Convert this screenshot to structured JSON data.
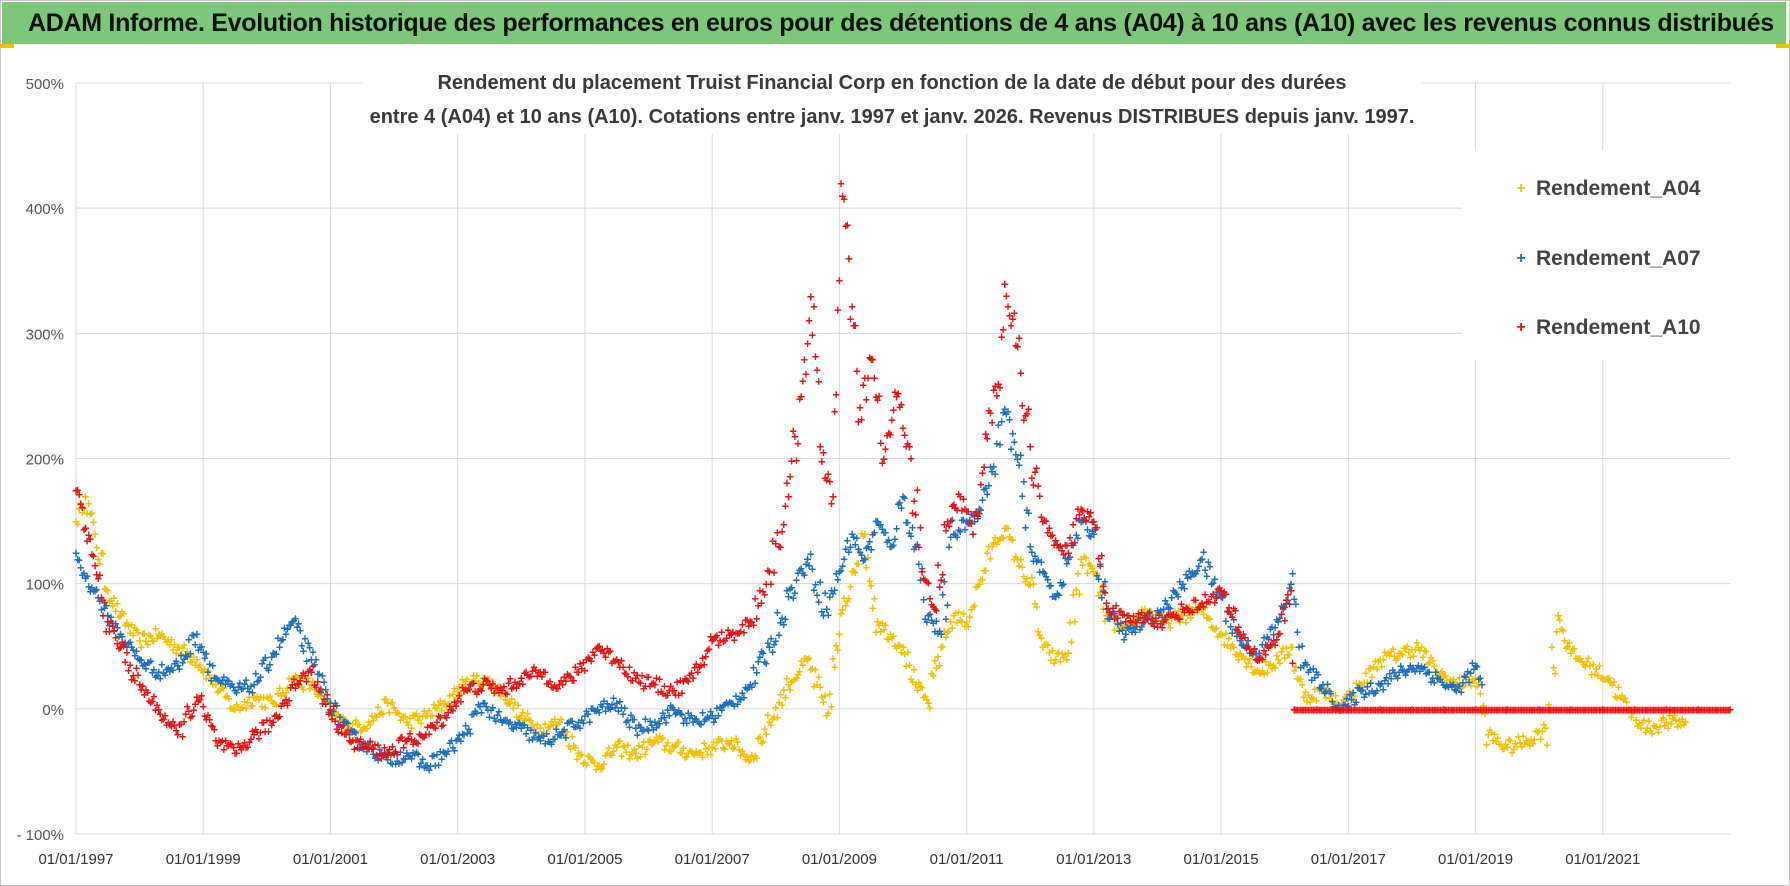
{
  "banner": {
    "title": "ADAM Informe. Evolution historique des performances en euros pour des détentions de 4 ans (A04) à 10 ans (A10) avec les revenus connus distribués"
  },
  "colors": {
    "banner_bg": "#7dc77b",
    "A04": "#f5c000",
    "A07": "#1f6fbf",
    "A10": "#ee1111",
    "gridline": "#d9d9d9"
  },
  "chart_data": {
    "type": "scatter",
    "title_line1": "Rendement du placement Truist Financial Corp en fonction de la date de début pour des durées",
    "title_line2": "entre 4 (A04) et 10 ans (A10).  Cotations entre janv. 1997 et janv. 2026. Revenus DISTRIBUES  depuis janv. 1997.",
    "xlabel": "",
    "ylabel": "",
    "x_range": [
      "1997-01-01",
      "2023-01-01"
    ],
    "ylim": [
      -100,
      500
    ],
    "y_ticks": [
      {
        "v": 500,
        "label": "500%"
      },
      {
        "v": 400,
        "label": "400%"
      },
      {
        "v": 300,
        "label": "300%"
      },
      {
        "v": 200,
        "label": "200%"
      },
      {
        "v": 100,
        "label": "100%"
      },
      {
        "v": 0,
        "label": "0%"
      },
      {
        "v": -100,
        "label": "- 100%"
      }
    ],
    "x_ticks": [
      {
        "year": 1997,
        "label": "01/01/1997"
      },
      {
        "year": 1999,
        "label": "01/01/1999"
      },
      {
        "year": 2001,
        "label": "01/01/2001"
      },
      {
        "year": 2003,
        "label": "01/01/2003"
      },
      {
        "year": 2005,
        "label": "01/01/2005"
      },
      {
        "year": 2007,
        "label": "01/01/2007"
      },
      {
        "year": 2009,
        "label": "01/01/2009"
      },
      {
        "year": 2011,
        "label": "01/01/2011"
      },
      {
        "year": 2013,
        "label": "01/01/2013"
      },
      {
        "year": 2015,
        "label": "01/01/2015"
      },
      {
        "year": 2017,
        "label": "01/01/2017"
      },
      {
        "year": 2019,
        "label": "01/01/2019"
      },
      {
        "year": 2021,
        "label": "01/01/2021"
      }
    ],
    "grid": true,
    "marker": "+",
    "legend_position": "top-right",
    "series": [
      {
        "name": "Rendement_A04",
        "key": "A04",
        "points": [
          [
            1997.0,
            150
          ],
          [
            1997.15,
            170
          ],
          [
            1997.3,
            140
          ],
          [
            1997.5,
            95
          ],
          [
            1997.7,
            75
          ],
          [
            1998.0,
            55
          ],
          [
            1998.3,
            60
          ],
          [
            1998.6,
            50
          ],
          [
            1998.9,
            40
          ],
          [
            1999.2,
            20
          ],
          [
            1999.5,
            0
          ],
          [
            1999.8,
            10
          ],
          [
            2000.1,
            5
          ],
          [
            2000.4,
            25
          ],
          [
            2000.7,
            20
          ],
          [
            2001.0,
            0
          ],
          [
            2001.3,
            -15
          ],
          [
            2001.6,
            -10
          ],
          [
            2001.9,
            5
          ],
          [
            2002.2,
            -10
          ],
          [
            2002.5,
            -5
          ],
          [
            2002.8,
            5
          ],
          [
            2003.1,
            20
          ],
          [
            2003.4,
            25
          ],
          [
            2003.7,
            15
          ],
          [
            2004.0,
            -5
          ],
          [
            2004.3,
            -15
          ],
          [
            2004.6,
            -10
          ],
          [
            2004.9,
            -35
          ],
          [
            2005.2,
            -45
          ],
          [
            2005.5,
            -30
          ],
          [
            2005.8,
            -35
          ],
          [
            2006.1,
            -25
          ],
          [
            2006.4,
            -30
          ],
          [
            2006.7,
            -35
          ],
          [
            2007.0,
            -30
          ],
          [
            2007.3,
            -25
          ],
          [
            2007.6,
            -40
          ],
          [
            2007.9,
            -10
          ],
          [
            2008.2,
            20
          ],
          [
            2008.5,
            40
          ],
          [
            2008.8,
            -5
          ],
          [
            2009.0,
            60
          ],
          [
            2009.2,
            110
          ],
          [
            2009.4,
            140
          ],
          [
            2009.6,
            70
          ],
          [
            2009.8,
            60
          ],
          [
            2010.0,
            50
          ],
          [
            2010.2,
            20
          ],
          [
            2010.4,
            5
          ],
          [
            2010.6,
            50
          ],
          [
            2010.8,
            75
          ],
          [
            2011.0,
            70
          ],
          [
            2011.2,
            100
          ],
          [
            2011.4,
            130
          ],
          [
            2011.6,
            145
          ],
          [
            2011.8,
            120
          ],
          [
            2012.0,
            100
          ],
          [
            2012.2,
            50
          ],
          [
            2012.4,
            40
          ],
          [
            2012.6,
            45
          ],
          [
            2012.8,
            120
          ],
          [
            2013.0,
            110
          ],
          [
            2013.2,
            75
          ],
          [
            2013.5,
            60
          ],
          [
            2013.8,
            80
          ],
          [
            2014.1,
            70
          ],
          [
            2014.4,
            75
          ],
          [
            2014.7,
            80
          ],
          [
            2015.0,
            60
          ],
          [
            2015.3,
            45
          ],
          [
            2015.6,
            30
          ],
          [
            2015.9,
            40
          ],
          [
            2016.1,
            50
          ],
          [
            2016.3,
            10
          ],
          [
            2016.6,
            15
          ],
          [
            2016.9,
            5
          ],
          [
            2017.2,
            20
          ],
          [
            2017.5,
            40
          ],
          [
            2017.8,
            45
          ],
          [
            2018.1,
            50
          ],
          [
            2018.4,
            30
          ],
          [
            2018.7,
            20
          ],
          [
            2019.0,
            25
          ],
          [
            2019.2,
            -20
          ],
          [
            2019.5,
            -30
          ],
          [
            2019.8,
            -25
          ],
          [
            2020.1,
            -15
          ],
          [
            2020.3,
            75
          ],
          [
            2020.5,
            45
          ],
          [
            2020.8,
            35
          ],
          [
            2021.1,
            25
          ],
          [
            2021.4,
            0
          ],
          [
            2021.7,
            -15
          ],
          [
            2022.0,
            -10
          ],
          [
            2022.3,
            -10
          ]
        ]
      },
      {
        "name": "Rendement_A07",
        "key": "A07",
        "points": [
          [
            1997.0,
            125
          ],
          [
            1997.15,
            105
          ],
          [
            1997.3,
            95
          ],
          [
            1997.5,
            75
          ],
          [
            1997.7,
            60
          ],
          [
            1998.0,
            40
          ],
          [
            1998.3,
            30
          ],
          [
            1998.6,
            35
          ],
          [
            1998.9,
            60
          ],
          [
            1999.2,
            25
          ],
          [
            1999.5,
            15
          ],
          [
            1999.8,
            20
          ],
          [
            2000.1,
            45
          ],
          [
            2000.4,
            70
          ],
          [
            2000.7,
            40
          ],
          [
            2001.0,
            5
          ],
          [
            2001.3,
            -20
          ],
          [
            2001.6,
            -30
          ],
          [
            2001.9,
            -40
          ],
          [
            2002.2,
            -35
          ],
          [
            2002.5,
            -45
          ],
          [
            2002.8,
            -35
          ],
          [
            2003.1,
            -20
          ],
          [
            2003.4,
            5
          ],
          [
            2003.7,
            -10
          ],
          [
            2004.0,
            -15
          ],
          [
            2004.3,
            -25
          ],
          [
            2004.6,
            -20
          ],
          [
            2004.9,
            -10
          ],
          [
            2005.2,
            0
          ],
          [
            2005.5,
            5
          ],
          [
            2005.8,
            -15
          ],
          [
            2006.1,
            -10
          ],
          [
            2006.4,
            0
          ],
          [
            2006.7,
            -10
          ],
          [
            2007.0,
            -5
          ],
          [
            2007.3,
            5
          ],
          [
            2007.6,
            20
          ],
          [
            2007.9,
            50
          ],
          [
            2008.2,
            90
          ],
          [
            2008.5,
            120
          ],
          [
            2008.8,
            80
          ],
          [
            2009.0,
            110
          ],
          [
            2009.2,
            140
          ],
          [
            2009.4,
            120
          ],
          [
            2009.6,
            150
          ],
          [
            2009.8,
            130
          ],
          [
            2010.0,
            170
          ],
          [
            2010.2,
            130
          ],
          [
            2010.4,
            75
          ],
          [
            2010.6,
            60
          ],
          [
            2010.8,
            140
          ],
          [
            2011.0,
            150
          ],
          [
            2011.2,
            160
          ],
          [
            2011.4,
            190
          ],
          [
            2011.6,
            240
          ],
          [
            2011.8,
            200
          ],
          [
            2012.0,
            130
          ],
          [
            2012.2,
            110
          ],
          [
            2012.4,
            90
          ],
          [
            2012.6,
            120
          ],
          [
            2012.8,
            150
          ],
          [
            2013.0,
            140
          ],
          [
            2013.2,
            80
          ],
          [
            2013.5,
            60
          ],
          [
            2013.8,
            70
          ],
          [
            2014.1,
            80
          ],
          [
            2014.4,
            100
          ],
          [
            2014.7,
            120
          ],
          [
            2015.0,
            90
          ],
          [
            2015.3,
            55
          ],
          [
            2015.6,
            45
          ],
          [
            2015.9,
            70
          ],
          [
            2016.1,
            100
          ],
          [
            2016.3,
            35
          ],
          [
            2016.6,
            20
          ],
          [
            2016.9,
            0
          ],
          [
            2017.2,
            15
          ],
          [
            2017.5,
            20
          ],
          [
            2017.8,
            30
          ],
          [
            2018.1,
            35
          ],
          [
            2018.4,
            25
          ],
          [
            2018.7,
            15
          ],
          [
            2019.0,
            35
          ],
          [
            2019.1,
            20
          ]
        ]
      },
      {
        "name": "Rendement_A10",
        "key": "A10",
        "points": [
          [
            1997.0,
            175
          ],
          [
            1997.15,
            145
          ],
          [
            1997.3,
            115
          ],
          [
            1997.5,
            70
          ],
          [
            1997.7,
            50
          ],
          [
            1998.0,
            20
          ],
          [
            1998.3,
            0
          ],
          [
            1998.6,
            -20
          ],
          [
            1998.9,
            10
          ],
          [
            1999.2,
            -25
          ],
          [
            1999.5,
            -35
          ],
          [
            1999.8,
            -20
          ],
          [
            2000.1,
            -10
          ],
          [
            2000.4,
            20
          ],
          [
            2000.7,
            30
          ],
          [
            2001.0,
            0
          ],
          [
            2001.3,
            -25
          ],
          [
            2001.6,
            -30
          ],
          [
            2001.9,
            -35
          ],
          [
            2002.2,
            -25
          ],
          [
            2002.5,
            -20
          ],
          [
            2002.8,
            -5
          ],
          [
            2003.1,
            15
          ],
          [
            2003.4,
            20
          ],
          [
            2003.7,
            15
          ],
          [
            2004.0,
            25
          ],
          [
            2004.3,
            30
          ],
          [
            2004.6,
            20
          ],
          [
            2004.9,
            30
          ],
          [
            2005.2,
            50
          ],
          [
            2005.5,
            40
          ],
          [
            2005.8,
            25
          ],
          [
            2006.1,
            20
          ],
          [
            2006.4,
            15
          ],
          [
            2006.7,
            25
          ],
          [
            2007.0,
            55
          ],
          [
            2007.3,
            60
          ],
          [
            2007.6,
            70
          ],
          [
            2007.9,
            110
          ],
          [
            2008.2,
            170
          ],
          [
            2008.4,
            250
          ],
          [
            2008.55,
            330
          ],
          [
            2008.7,
            210
          ],
          [
            2008.9,
            170
          ],
          [
            2009.05,
            410
          ],
          [
            2009.15,
            360
          ],
          [
            2009.3,
            230
          ],
          [
            2009.5,
            280
          ],
          [
            2009.7,
            200
          ],
          [
            2009.9,
            250
          ],
          [
            2010.1,
            210
          ],
          [
            2010.3,
            110
          ],
          [
            2010.5,
            80
          ],
          [
            2010.7,
            150
          ],
          [
            2010.9,
            170
          ],
          [
            2011.1,
            140
          ],
          [
            2011.3,
            220
          ],
          [
            2011.5,
            260
          ],
          [
            2011.6,
            340
          ],
          [
            2011.8,
            290
          ],
          [
            2012.0,
            210
          ],
          [
            2012.2,
            150
          ],
          [
            2012.4,
            135
          ],
          [
            2012.6,
            125
          ],
          [
            2012.8,
            160
          ],
          [
            2013.0,
            150
          ],
          [
            2013.2,
            85
          ],
          [
            2013.5,
            70
          ],
          [
            2013.8,
            75
          ],
          [
            2014.1,
            70
          ],
          [
            2014.4,
            80
          ],
          [
            2014.7,
            85
          ],
          [
            2015.0,
            95
          ],
          [
            2015.3,
            60
          ],
          [
            2015.6,
            40
          ],
          [
            2015.9,
            60
          ],
          [
            2016.1,
            95
          ],
          [
            2016.15,
            0
          ],
          [
            2016.5,
            0
          ],
          [
            2017.0,
            0
          ],
          [
            2017.5,
            0
          ],
          [
            2018.0,
            0
          ],
          [
            2018.5,
            0
          ],
          [
            2019.0,
            0
          ],
          [
            2019.5,
            0
          ],
          [
            2020.0,
            0
          ],
          [
            2020.5,
            0
          ],
          [
            2021.0,
            0
          ],
          [
            2021.5,
            0
          ],
          [
            2022.0,
            0
          ],
          [
            2022.5,
            0
          ],
          [
            2023.0,
            0
          ]
        ]
      }
    ]
  }
}
